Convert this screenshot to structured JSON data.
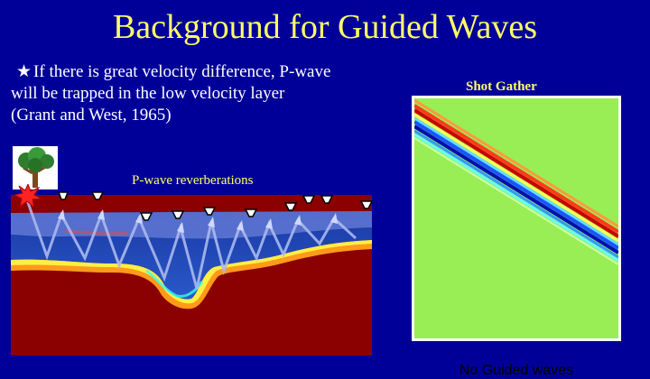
{
  "slide": {
    "title": "Background for Guided Waves",
    "bullet_line_1": "If there is great velocity difference, P-wave",
    "bullet_line_2": "will be trapped in the low velocity layer",
    "bullet_line_3": "(Grant and West, 1965)",
    "bullet_glyph": "★",
    "shot_gather_label": "Shot Gather",
    "reverb_label": "P-wave reverberations",
    "no_guided_label": "No Guided waves"
  },
  "colors": {
    "background": "#000099",
    "title": "#ffff66",
    "text": "#ffffff",
    "gather_bg": "#99ee55"
  },
  "icons": [
    "tree-icon",
    "explosion-icon",
    "geophone-icon",
    "star-bullet-icon"
  ]
}
